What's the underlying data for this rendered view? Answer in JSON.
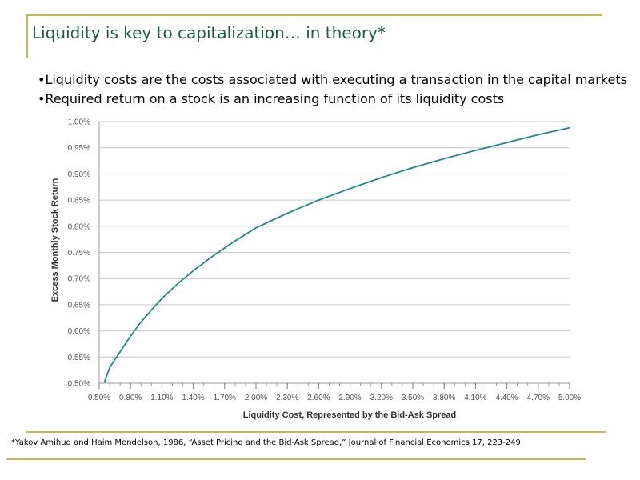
{
  "slide": {
    "title": "Liquidity is key to capitalization… in theory*",
    "bullets": [
      "•Liquidity costs are the costs associated with executing a transaction in the capital markets",
      "•Required return on a stock is an increasing function of its liquidity costs"
    ],
    "footnote": "*Yakov Amihud and Haim Mendelson, 1986, “Asset Pricing and the Bid-Ask Spread,” Journal of Financial Economics 17, 223-249"
  },
  "colors": {
    "title": "#1a5e3a",
    "frame": "#c8b94f",
    "line": "#1f8a8a",
    "grid": "#c6c6c6",
    "axis_text": "#555555"
  },
  "chart_data": {
    "type": "line",
    "xlabel": "Liquidity Cost, Represented by the Bid-Ask Spread",
    "ylabel": "Excess Monthly Stock Return",
    "xlim": [
      0.5,
      5.0
    ],
    "ylim": [
      0.5,
      1.0
    ],
    "x_tick_labels": [
      "0.50%",
      "0.80%",
      "1.10%",
      "1.40%",
      "1.70%",
      "2.00%",
      "2.30%",
      "2.60%",
      "2.90%",
      "3.20%",
      "3.50%",
      "3.80%",
      "4.10%",
      "4.40%",
      "4.70%",
      "5.00%"
    ],
    "y_tick_labels": [
      "1.00%",
      "0.95%",
      "0.90%",
      "0.85%",
      "0.80%",
      "0.75%",
      "0.70%",
      "0.65%",
      "0.60%",
      "0.55%",
      "0.50%"
    ],
    "x_ticks": [
      0.5,
      0.8,
      1.1,
      1.4,
      1.7,
      2.0,
      2.3,
      2.6,
      2.9,
      3.2,
      3.5,
      3.8,
      4.1,
      4.4,
      4.7,
      5.0
    ],
    "y_ticks": [
      1.0,
      0.95,
      0.9,
      0.85,
      0.8,
      0.75,
      0.7,
      0.65,
      0.6,
      0.55,
      0.5
    ],
    "grid": true,
    "series": [
      {
        "x": [
          0.55,
          0.6,
          0.7,
          0.8,
          0.9,
          1.0,
          1.1,
          1.25,
          1.4,
          1.6,
          1.8,
          2.0,
          2.3,
          2.6,
          2.9,
          3.2,
          3.5,
          3.8,
          4.1,
          4.4,
          4.7,
          5.0
        ],
        "y": [
          0.502,
          0.53,
          0.56,
          0.59,
          0.617,
          0.64,
          0.662,
          0.69,
          0.715,
          0.745,
          0.772,
          0.797,
          0.825,
          0.85,
          0.872,
          0.893,
          0.912,
          0.929,
          0.945,
          0.96,
          0.975,
          0.988
        ]
      }
    ]
  }
}
